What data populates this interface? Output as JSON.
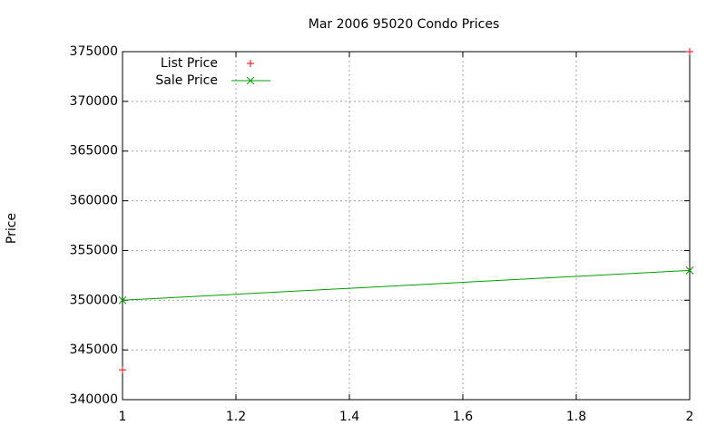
{
  "chart_data": {
    "type": "line",
    "title": "Mar 2006 95020 Condo Prices",
    "y_label": "Price",
    "x": [
      1,
      2
    ],
    "series": [
      {
        "name": "List Price",
        "color": "#ff0000",
        "style": "points",
        "marker": "plus",
        "values": [
          343000,
          375000
        ]
      },
      {
        "name": "Sale Price",
        "color": "#00a000",
        "style": "linespoints",
        "marker": "cross",
        "values": [
          350000,
          353000
        ]
      }
    ],
    "xlim": [
      1,
      2
    ],
    "xticks": [
      1,
      1.2,
      1.4,
      1.6,
      1.8,
      2
    ],
    "ylim": [
      340000,
      375000
    ],
    "yticks": [
      340000,
      345000,
      350000,
      355000,
      360000,
      365000,
      370000,
      375000
    ],
    "grid": true,
    "legend": "top-left"
  }
}
